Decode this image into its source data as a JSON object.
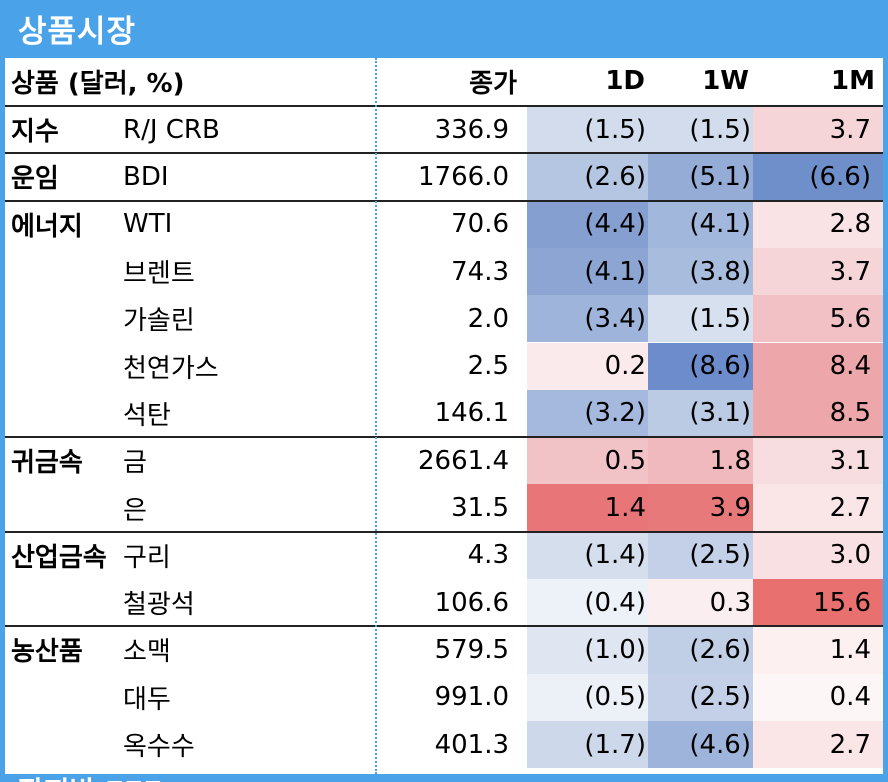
{
  "title": "상품시장",
  "header": {
    "commodity_label": "상품 (달러, %)",
    "close_label": "종가",
    "d1_label": "1D",
    "w1_label": "1W",
    "m1_label": "1M"
  },
  "rows": [
    {
      "category": "지수",
      "name": "R/J CRB",
      "close": "336.9",
      "d1": "(1.5)",
      "w1": "(1.5)",
      "m1": "3.7",
      "c_d1": "#d2dcec",
      "c_w1": "#d2dcec",
      "c_m1": "#f6d5d8"
    },
    {
      "category": "운임",
      "name": "BDI",
      "close": "1766.0",
      "d1": "(2.6)",
      "w1": "(5.1)",
      "m1": "(6.6)",
      "c_d1": "#b5c6e2",
      "c_w1": "#95acd7",
      "c_m1": "#6f8fca"
    },
    {
      "category": "에너지",
      "name": "WTI",
      "close": "70.6",
      "d1": "(4.4)",
      "w1": "(4.1)",
      "m1": "2.8",
      "c_d1": "#859fd1",
      "c_w1": "#a2b7dc",
      "c_m1": "#fae3e5"
    },
    {
      "category": "",
      "name": "브렌트",
      "close": "74.3",
      "d1": "(4.1)",
      "w1": "(3.8)",
      "m1": "3.7",
      "c_d1": "#8ca5d3",
      "c_w1": "#a8bcde",
      "c_m1": "#f6d5d8"
    },
    {
      "category": "",
      "name": "가솔린",
      "close": "2.0",
      "d1": "(3.4)",
      "w1": "(1.5)",
      "m1": "5.6",
      "c_d1": "#9fb4db",
      "c_w1": "#d6e0ee",
      "c_m1": "#f1c1c5"
    },
    {
      "category": "",
      "name": "천연가스",
      "close": "2.5",
      "d1": "0.2",
      "w1": "(8.6)",
      "m1": "8.4",
      "c_d1": "#fbeaec",
      "c_w1": "#6c8ccc",
      "c_m1": "#eda6aa"
    },
    {
      "category": "",
      "name": "석탄",
      "close": "146.1",
      "d1": "(3.2)",
      "w1": "(3.1)",
      "m1": "8.5",
      "c_d1": "#a4b9dd",
      "c_w1": "#bccbe4",
      "c_m1": "#eda6aa"
    },
    {
      "category": "귀금속",
      "name": "금",
      "close": "2661.4",
      "d1": "0.5",
      "w1": "1.8",
      "m1": "3.1",
      "c_d1": "#f1c3c7",
      "c_w1": "#efb9bd",
      "c_m1": "#f8dde0"
    },
    {
      "category": "",
      "name": "은",
      "close": "31.5",
      "d1": "1.4",
      "w1": "3.9",
      "m1": "2.7",
      "c_d1": "#e87678",
      "c_w1": "#e8797b",
      "c_m1": "#fae5e7"
    },
    {
      "category": "산업금속",
      "name": "구리",
      "close": "4.3",
      "d1": "(1.4)",
      "w1": "(2.5)",
      "m1": "3.0",
      "c_d1": "#d4deed",
      "c_w1": "#c3d0e7",
      "c_m1": "#f9e0e2"
    },
    {
      "category": "",
      "name": "철광석",
      "close": "106.6",
      "d1": "(0.4)",
      "w1": "0.3",
      "m1": "15.6",
      "c_d1": "#edf1f8",
      "c_w1": "#fbeef0",
      "c_m1": "#e8716f"
    },
    {
      "category": "농산품",
      "name": "소맥",
      "close": "579.5",
      "d1": "(1.0)",
      "w1": "(2.6)",
      "m1": "1.4",
      "c_d1": "#dfe6f2",
      "c_w1": "#c1cfe6",
      "c_m1": "#fcf0f1"
    },
    {
      "category": "",
      "name": "대두",
      "close": "991.0",
      "d1": "(0.5)",
      "w1": "(2.5)",
      "m1": "0.4",
      "c_d1": "#ecf0f7",
      "c_w1": "#c3d0e7",
      "c_m1": "#fdf6f7"
    },
    {
      "category": "",
      "name": "옥수수",
      "close": "401.3",
      "d1": "(1.7)",
      "w1": "(4.6)",
      "m1": "2.7",
      "c_d1": "#cdd8eb",
      "c_w1": "#9fb4db",
      "c_m1": "#fae5e7"
    }
  ],
  "footer_title": "잡지방 FFF"
}
